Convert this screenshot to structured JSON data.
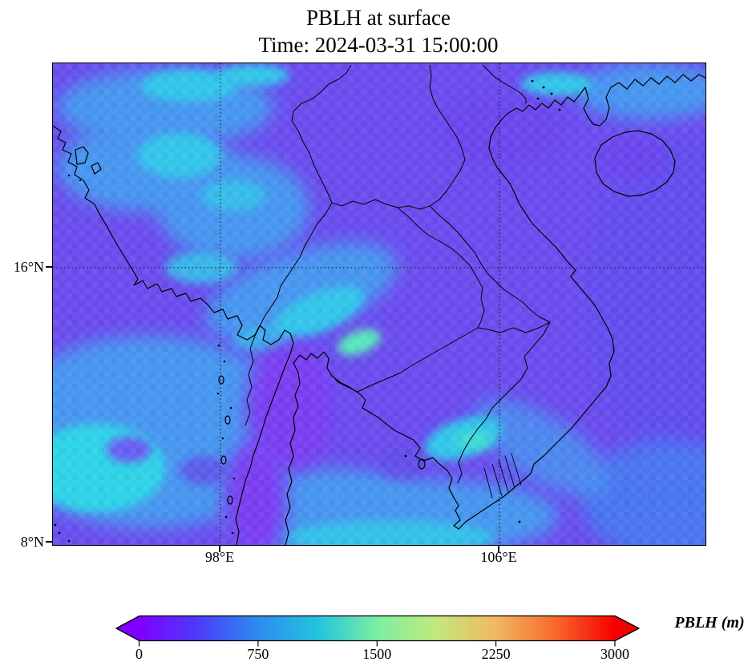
{
  "palette": {
    "base": "#6a4cee",
    "violet_blue": "#5c50ee",
    "light_blue": "#4796f0",
    "sea_blue": "#4a74f0",
    "cyan": "#30c6ea",
    "bright_cyan": "#2fd3e8",
    "mint": "#58e8bc",
    "teal": "#3fdcd2",
    "deep_violet": "#7a3df2",
    "dark_violet_soft": "#6a44ee",
    "sea_patch_violet": "#5f50e8",
    "coast": "#000000",
    "grid": "#222222"
  },
  "chart_data": {
    "type": "heatmap",
    "title": "PBLH at surface",
    "subtitle": "Time: 2024-03-31 15:00:00",
    "variable": "PBLH",
    "units": "m",
    "projection": "lat-lon map of mainland Southeast Asia with coastlines and country borders",
    "x_axis": {
      "tick_labels": [
        "98°E",
        "106°E"
      ]
    },
    "y_axis": {
      "tick_labels": [
        "16°N",
        "8°N"
      ]
    },
    "extent": {
      "lon_min": 93.2,
      "lon_max": 111.9,
      "lat_min": 7.9,
      "lat_max": 22.1
    },
    "gridlines": "dotted, at 98E, 106E and 16N",
    "colorbar": {
      "label": "PBLH (m)",
      "orientation": "horizontal",
      "ticks": [
        "0",
        "750",
        "1500",
        "2250",
        "3000"
      ],
      "tick_values": [
        0,
        750,
        1500,
        2250,
        3000
      ],
      "range": [
        0,
        3000
      ],
      "extend": "both",
      "colormap": "rainbow",
      "stops": [
        {
          "pos": 0,
          "color": "#7f00ff"
        },
        {
          "pos": 0.125,
          "color": "#4b3cf9"
        },
        {
          "pos": 0.25,
          "color": "#2e8cf0"
        },
        {
          "pos": 0.375,
          "color": "#22c4de"
        },
        {
          "pos": 0.5,
          "color": "#7ceea2"
        },
        {
          "pos": 0.625,
          "color": "#c3e97c"
        },
        {
          "pos": 0.75,
          "color": "#f0b860"
        },
        {
          "pos": 0.875,
          "color": "#f8682a"
        },
        {
          "pos": 1,
          "color": "#f50000"
        }
      ]
    },
    "field_regions": [
      {
        "region": "most of domain (violet background)",
        "approx_pblh_m": 350
      },
      {
        "region": "NW diagonal band over Myanmar/Bangladesh",
        "approx_pblh_m": 750
      },
      {
        "region": "central Thailand diagonal band",
        "approx_pblh_m": 650
      },
      {
        "region": "bright mint spot NE of Bangkok",
        "approx_pblh_m": 1050
      },
      {
        "region": "Andaman Sea (lower left)",
        "approx_pblh_m": 700
      },
      {
        "region": "southern Vietnam / Cambodia cyan patch",
        "approx_pblh_m": 900
      },
      {
        "region": "Gulf of Tonkin coastal patch (top right)",
        "approx_pblh_m": 800
      },
      {
        "region": "Thai-Malay peninsula (deep violet)",
        "approx_pblh_m": 250
      },
      {
        "region": "southern edge of domain (cyan strip)",
        "approx_pblh_m": 750
      }
    ]
  }
}
